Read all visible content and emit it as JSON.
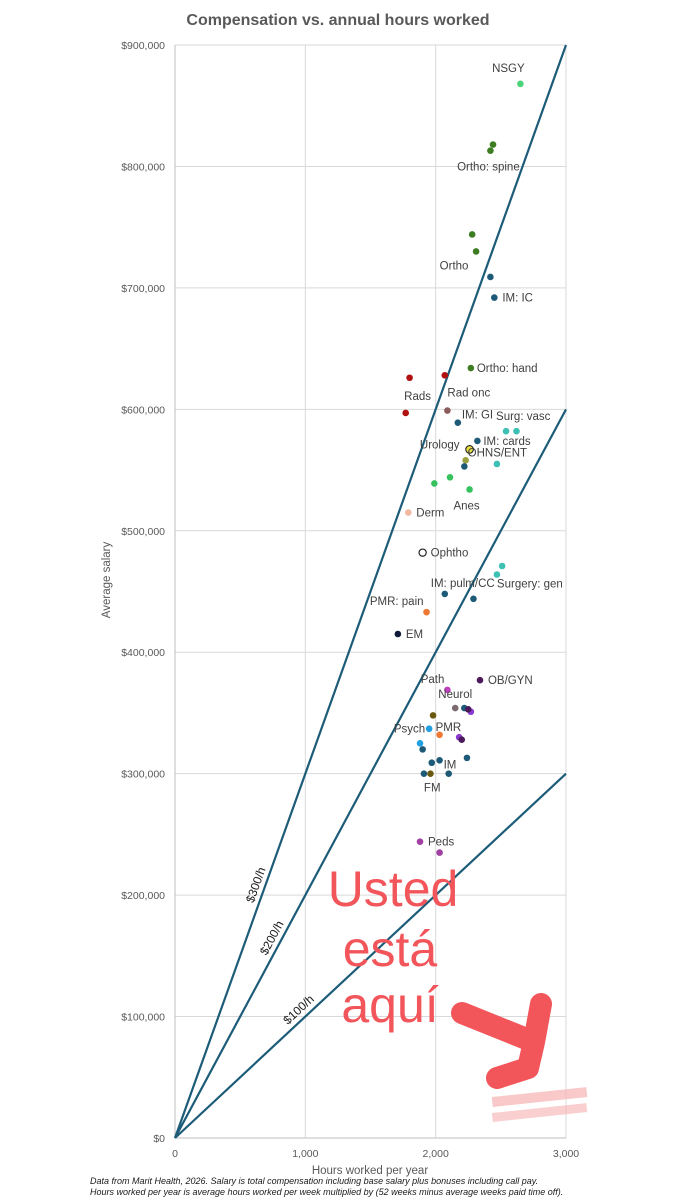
{
  "chart_data": {
    "type": "scatter",
    "title": "Compensation vs. annual hours worked",
    "xlabel": "Hours worked per year",
    "ylabel": "Average salary",
    "xlim": [
      0,
      3000
    ],
    "ylim": [
      0,
      900000
    ],
    "x_ticks": [
      0,
      1000,
      2000,
      3000
    ],
    "x_tick_labels": [
      "0",
      "1,000",
      "2,000",
      "3,000"
    ],
    "y_ticks": [
      0,
      100000,
      200000,
      300000,
      400000,
      500000,
      600000,
      700000,
      800000,
      900000
    ],
    "y_tick_labels": [
      "$0",
      "$100,000",
      "$200,000",
      "$300,000",
      "$400,000",
      "$500,000",
      "$600,000",
      "$700,000",
      "$800,000",
      "$900,000"
    ],
    "grid": true,
    "reference_lines": [
      {
        "label": "$300/h",
        "rate": 300
      },
      {
        "label": "$200/h",
        "rate": 200
      },
      {
        "label": "$100/h",
        "rate": 100
      }
    ],
    "points": [
      {
        "x": 2650,
        "y": 868000,
        "color": "#4cd47a",
        "label": "NSGY"
      },
      {
        "x": 2440,
        "y": 818000,
        "color": "#3d7d22",
        "label": ""
      },
      {
        "x": 2420,
        "y": 813000,
        "color": "#3d7d22",
        "label": "Ortho: spine"
      },
      {
        "x": 2280,
        "y": 744000,
        "color": "#3d7d22",
        "label": ""
      },
      {
        "x": 2310,
        "y": 730000,
        "color": "#3d7d22",
        "label": "Ortho"
      },
      {
        "x": 2420,
        "y": 709000,
        "color": "#1c5a78",
        "label": ""
      },
      {
        "x": 2450,
        "y": 692000,
        "color": "#1c5a78",
        "label": "IM: IC"
      },
      {
        "x": 2070,
        "y": 628000,
        "color": "#b01010",
        "label": ""
      },
      {
        "x": 1800,
        "y": 626000,
        "color": "#b01010",
        "label": "Rads"
      },
      {
        "x": 1770,
        "y": 597000,
        "color": "#b01010",
        "label": ""
      },
      {
        "x": 2270,
        "y": 634000,
        "color": "#3d7d22",
        "label": "Ortho: hand"
      },
      {
        "x": 2090,
        "y": 599000,
        "color": "#8b5a5a",
        "label": "Rad onc"
      },
      {
        "x": 2170,
        "y": 589000,
        "color": "#1c5a78",
        "label": "IM: GI"
      },
      {
        "x": 2540,
        "y": 582000,
        "color": "#3cc0b4",
        "label": "Surg: vasc"
      },
      {
        "x": 2620,
        "y": 582000,
        "color": "#3cc0b4",
        "label": ""
      },
      {
        "x": 2320,
        "y": 574000,
        "color": "#1c5a78",
        "label": "IM: cards"
      },
      {
        "x": 2260,
        "y": 567000,
        "color": "#e8e040",
        "label": "Urology",
        "outline": true
      },
      {
        "x": 2230,
        "y": 558000,
        "color": "#9aa040",
        "label": "OHNS/ENT"
      },
      {
        "x": 2470,
        "y": 555000,
        "color": "#3cc0b4",
        "label": ""
      },
      {
        "x": 2220,
        "y": 553000,
        "color": "#1c5a78",
        "label": ""
      },
      {
        "x": 2110,
        "y": 544000,
        "color": "#36c25e",
        "label": ""
      },
      {
        "x": 1990,
        "y": 539000,
        "color": "#36c25e",
        "label": ""
      },
      {
        "x": 2260,
        "y": 534000,
        "color": "#36c25e",
        "label": "Anes"
      },
      {
        "x": 1790,
        "y": 515000,
        "color": "#f2b8a0",
        "label": "Derm"
      },
      {
        "x": 1900,
        "y": 482000,
        "color": "#ffffff",
        "label": "Ophtho",
        "hollow": true
      },
      {
        "x": 2510,
        "y": 471000,
        "color": "#3cc0b4",
        "label": ""
      },
      {
        "x": 2470,
        "y": 464000,
        "color": "#3cc0b4",
        "label": "Surgery: gen"
      },
      {
        "x": 2070,
        "y": 448000,
        "color": "#1c5a78",
        "label": "IM: pulm/CC"
      },
      {
        "x": 2290,
        "y": 444000,
        "color": "#1c5a78",
        "label": ""
      },
      {
        "x": 1930,
        "y": 433000,
        "color": "#f07832",
        "label": "PMR: pain"
      },
      {
        "x": 1710,
        "y": 415000,
        "color": "#0e1a3a",
        "label": "EM"
      },
      {
        "x": 2340,
        "y": 377000,
        "color": "#4a1a5a",
        "label": "OB/GYN"
      },
      {
        "x": 2090,
        "y": 369000,
        "color": "#c040c0",
        "label": "Path"
      },
      {
        "x": 2150,
        "y": 354000,
        "color": "#7a6a70",
        "label": "Neurol"
      },
      {
        "x": 2220,
        "y": 354000,
        "color": "#1c5a78",
        "label": ""
      },
      {
        "x": 2270,
        "y": 351000,
        "color": "#8a3ad0",
        "label": ""
      },
      {
        "x": 2250,
        "y": 353000,
        "color": "#4a1a5a",
        "label": ""
      },
      {
        "x": 1980,
        "y": 348000,
        "color": "#6a5a10",
        "label": ""
      },
      {
        "x": 1950,
        "y": 337000,
        "color": "#20a0e0",
        "label": "Psych"
      },
      {
        "x": 2030,
        "y": 332000,
        "color": "#f07832",
        "label": "PMR"
      },
      {
        "x": 2180,
        "y": 330000,
        "color": "#8a3ad0",
        "label": ""
      },
      {
        "x": 2200,
        "y": 328000,
        "color": "#4a1a5a",
        "label": ""
      },
      {
        "x": 1880,
        "y": 325000,
        "color": "#20a0e0",
        "label": ""
      },
      {
        "x": 1900,
        "y": 320000,
        "color": "#1c5a78",
        "label": ""
      },
      {
        "x": 2240,
        "y": 313000,
        "color": "#1c5a78",
        "label": ""
      },
      {
        "x": 2030,
        "y": 311000,
        "color": "#1c5a78",
        "label": "IM"
      },
      {
        "x": 1970,
        "y": 309000,
        "color": "#1c5a78",
        "label": ""
      },
      {
        "x": 1910,
        "y": 300000,
        "color": "#1c5a78",
        "label": "FM"
      },
      {
        "x": 1960,
        "y": 300000,
        "color": "#6a5a10",
        "label": ""
      },
      {
        "x": 2100,
        "y": 300000,
        "color": "#1c5a78",
        "label": ""
      },
      {
        "x": 1880,
        "y": 244000,
        "color": "#a040a0",
        "label": "Peds"
      },
      {
        "x": 2030,
        "y": 235000,
        "color": "#a040a0",
        "label": ""
      }
    ],
    "annotations": [
      "Usted",
      "está",
      "aquí"
    ],
    "footnote": [
      "Data from Marit Health, 2026. Salary is total compensation including base salary plus bonuses including call pay.",
      "Hours worked per year is average hours worked per week multiplied by (52 weeks minus average weeks paid time off)."
    ]
  }
}
